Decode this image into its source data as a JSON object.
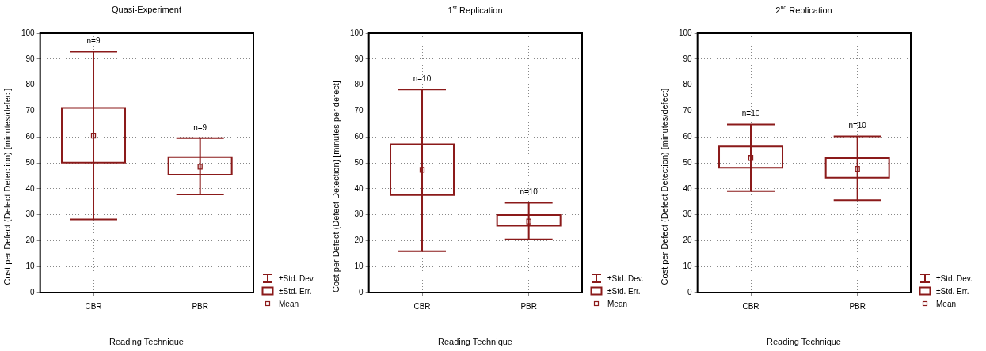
{
  "chart_data": [
    {
      "type": "box",
      "title": "Quasi-Experiment",
      "xlabel": "Reading Technique",
      "ylabel": "Cost per Defect (Defect Detection) [minutes/defect]",
      "categories": [
        "CBR",
        "PBR"
      ],
      "color": "#8b1a1a",
      "marker": "square",
      "boxes": [
        {
          "low": 28.2,
          "q1": 50.1,
          "q3": 71.2,
          "high": 92.8,
          "mean": 60.5
        },
        {
          "low": 37.8,
          "q1": 45.4,
          "q3": 52.2,
          "high": 59.5,
          "mean": 48.5
        }
      ],
      "ylim": [
        0,
        100
      ],
      "yticks": [
        0,
        10,
        20,
        30,
        40,
        50,
        60,
        70,
        80,
        90,
        100
      ],
      "grid": true,
      "annotations": [
        {
          "text": "n=9",
          "x": "CBR",
          "y": 92.8
        },
        {
          "text": "n=9",
          "x": "PBR",
          "y": 59.5
        },
        "±Std. Dev.",
        "±Std. Err.",
        "Mean"
      ]
    },
    {
      "type": "box",
      "title": "1$^{st}$ Replication",
      "xlabel": "Reading Technique",
      "ylabel": "Cost per Defect (Defect Detection) [minutes per defect]",
      "categories": [
        "CBR",
        "PBR"
      ],
      "color": "#8b1a1a",
      "marker": "square",
      "boxes": [
        {
          "low": 15.9,
          "q1": 37.6,
          "q3": 57.2,
          "high": 78.3,
          "mean": 47.3
        },
        {
          "low": 20.5,
          "q1": 25.8,
          "q3": 29.9,
          "high": 34.6,
          "mean": 27.4
        }
      ],
      "ylim": [
        0,
        100
      ],
      "yticks": [
        0,
        10,
        20,
        30,
        40,
        50,
        60,
        70,
        80,
        90,
        100
      ],
      "grid": true,
      "annotations": [
        {
          "text": "n=10",
          "x": "CBR",
          "y": 78.3
        },
        {
          "text": "n=10",
          "x": "PBR",
          "y": 34.6
        },
        "±Std. Dev.",
        "±Std. Err.",
        "Mean"
      ]
    },
    {
      "type": "box",
      "title": "2$^{nd}$ Replication",
      "xlabel": "Reading Technique",
      "ylabel": "Cost per Defect (Defect Detection) [minutes/defect]",
      "categories": [
        "CBR",
        "PBR"
      ],
      "color": "#8b1a1a",
      "marker": "square",
      "boxes": [
        {
          "low": 39.1,
          "q1": 48.1,
          "q3": 56.3,
          "high": 64.8,
          "mean": 51.9
        },
        {
          "low": 35.6,
          "q1": 44.3,
          "q3": 51.8,
          "high": 60.2,
          "mean": 47.7
        }
      ],
      "ylim": [
        0,
        100
      ],
      "yticks": [
        0,
        10,
        20,
        30,
        40,
        50,
        60,
        70,
        80,
        90,
        100
      ],
      "grid": true,
      "annotations": [
        {
          "text": "n=10",
          "x": "CBR",
          "y": 64.8
        },
        {
          "text": "n=10",
          "x": "PBR",
          "y": 60.2
        },
        "±Std. Dev.",
        "±Std. Err.",
        "Mean"
      ]
    }
  ]
}
